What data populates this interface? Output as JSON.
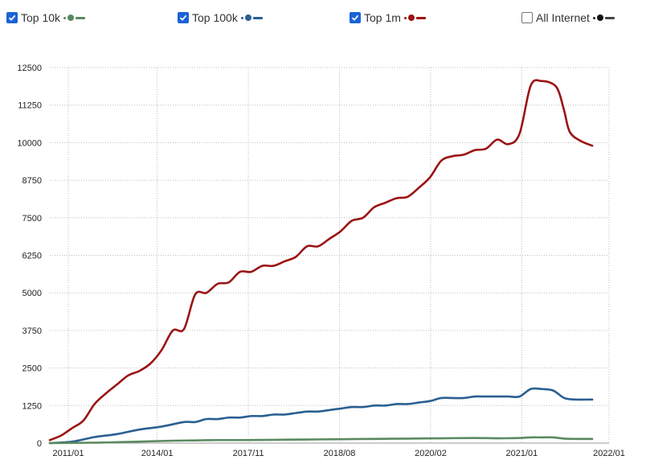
{
  "legend": [
    {
      "label": "Top 10k",
      "checked": true,
      "color": "#5a8a5f",
      "icon": "checkbox-checked-icon"
    },
    {
      "label": "Top 100k",
      "checked": true,
      "color": "#2a5f92",
      "icon": "checkbox-checked-icon"
    },
    {
      "label": "Top 1m",
      "checked": true,
      "color": "#9b1313",
      "icon": "checkbox-checked-icon"
    },
    {
      "label": "All Internet",
      "checked": false,
      "color": "#222222",
      "icon": "checkbox-unchecked-icon"
    }
  ],
  "chart_data": {
    "type": "line",
    "grid": true,
    "ylim": [
      0,
      12500
    ],
    "xlim": [
      0,
      100
    ],
    "y_ticks": [
      {
        "value": 0,
        "label": "0"
      },
      {
        "value": 1250,
        "label": "1250"
      },
      {
        "value": 2500,
        "label": "2500"
      },
      {
        "value": 3750,
        "label": "3750"
      },
      {
        "value": 5000,
        "label": "5000"
      },
      {
        "value": 6250,
        "label": "6250"
      },
      {
        "value": 7500,
        "label": "7500"
      },
      {
        "value": 8750,
        "label": "8750"
      },
      {
        "value": 10000,
        "label": "10000"
      },
      {
        "value": 11250,
        "label": "11250"
      },
      {
        "value": 12500,
        "label": "12500"
      }
    ],
    "x_ticks": [
      {
        "label": "2011/01",
        "pos": 3.3
      },
      {
        "label": "2014/01",
        "pos": 19.2
      },
      {
        "label": "2017/11",
        "pos": 35.5
      },
      {
        "label": "2018/08",
        "pos": 51.8
      },
      {
        "label": "2020/02",
        "pos": 68.1
      },
      {
        "label": "2021/01",
        "pos": 84.4
      },
      {
        "label": "2022/01",
        "pos": 100
      }
    ],
    "series": [
      {
        "name": "Top 1m",
        "color": "#9b1313",
        "points": [
          [
            0,
            100
          ],
          [
            2,
            250
          ],
          [
            4,
            500
          ],
          [
            6,
            750
          ],
          [
            8,
            1300
          ],
          [
            10,
            1650
          ],
          [
            12,
            1950
          ],
          [
            14,
            2250
          ],
          [
            16,
            2400
          ],
          [
            18,
            2650
          ],
          [
            20,
            3100
          ],
          [
            22,
            3750
          ],
          [
            24,
            3800
          ],
          [
            26,
            4950
          ],
          [
            28,
            5000
          ],
          [
            30,
            5300
          ],
          [
            32,
            5350
          ],
          [
            34,
            5700
          ],
          [
            36,
            5700
          ],
          [
            38,
            5900
          ],
          [
            40,
            5900
          ],
          [
            42,
            6050
          ],
          [
            44,
            6200
          ],
          [
            46,
            6550
          ],
          [
            48,
            6550
          ],
          [
            50,
            6800
          ],
          [
            52,
            7050
          ],
          [
            54,
            7400
          ],
          [
            56,
            7500
          ],
          [
            58,
            7850
          ],
          [
            60,
            8000
          ],
          [
            62,
            8150
          ],
          [
            64,
            8200
          ],
          [
            66,
            8500
          ],
          [
            68,
            8850
          ],
          [
            70,
            9400
          ],
          [
            72,
            9550
          ],
          [
            74,
            9600
          ],
          [
            76,
            9750
          ],
          [
            78,
            9800
          ],
          [
            80,
            10100
          ],
          [
            82,
            9950
          ],
          [
            84,
            10300
          ],
          [
            86,
            11900
          ],
          [
            88,
            12050
          ],
          [
            90,
            11950
          ],
          [
            91,
            11700
          ],
          [
            92,
            11050
          ],
          [
            93,
            10350
          ],
          [
            95,
            10050
          ],
          [
            97,
            9900
          ]
        ]
      },
      {
        "name": "Top 100k",
        "color": "#2a5f92",
        "points": [
          [
            0,
            0
          ],
          [
            4,
            50
          ],
          [
            8,
            200
          ],
          [
            12,
            300
          ],
          [
            16,
            450
          ],
          [
            20,
            550
          ],
          [
            24,
            700
          ],
          [
            26,
            700
          ],
          [
            28,
            800
          ],
          [
            30,
            800
          ],
          [
            32,
            850
          ],
          [
            34,
            850
          ],
          [
            36,
            900
          ],
          [
            38,
            900
          ],
          [
            40,
            950
          ],
          [
            42,
            950
          ],
          [
            44,
            1000
          ],
          [
            46,
            1050
          ],
          [
            48,
            1050
          ],
          [
            50,
            1100
          ],
          [
            52,
            1150
          ],
          [
            54,
            1200
          ],
          [
            56,
            1200
          ],
          [
            58,
            1250
          ],
          [
            60,
            1250
          ],
          [
            62,
            1300
          ],
          [
            64,
            1300
          ],
          [
            66,
            1350
          ],
          [
            68,
            1400
          ],
          [
            70,
            1500
          ],
          [
            72,
            1500
          ],
          [
            74,
            1500
          ],
          [
            76,
            1550
          ],
          [
            78,
            1550
          ],
          [
            80,
            1550
          ],
          [
            82,
            1550
          ],
          [
            84,
            1550
          ],
          [
            86,
            1800
          ],
          [
            88,
            1800
          ],
          [
            90,
            1750
          ],
          [
            92,
            1500
          ],
          [
            94,
            1450
          ],
          [
            97,
            1450
          ]
        ]
      },
      {
        "name": "Top 10k",
        "color": "#5a8a5f",
        "points": [
          [
            0,
            0
          ],
          [
            6,
            10
          ],
          [
            10,
            20
          ],
          [
            14,
            40
          ],
          [
            18,
            60
          ],
          [
            22,
            80
          ],
          [
            26,
            90
          ],
          [
            30,
            100
          ],
          [
            34,
            100
          ],
          [
            40,
            110
          ],
          [
            46,
            120
          ],
          [
            52,
            130
          ],
          [
            58,
            140
          ],
          [
            64,
            150
          ],
          [
            70,
            160
          ],
          [
            76,
            170
          ],
          [
            80,
            160
          ],
          [
            84,
            170
          ],
          [
            86,
            190
          ],
          [
            88,
            190
          ],
          [
            90,
            190
          ],
          [
            92,
            150
          ],
          [
            94,
            140
          ],
          [
            97,
            140
          ]
        ]
      }
    ]
  }
}
